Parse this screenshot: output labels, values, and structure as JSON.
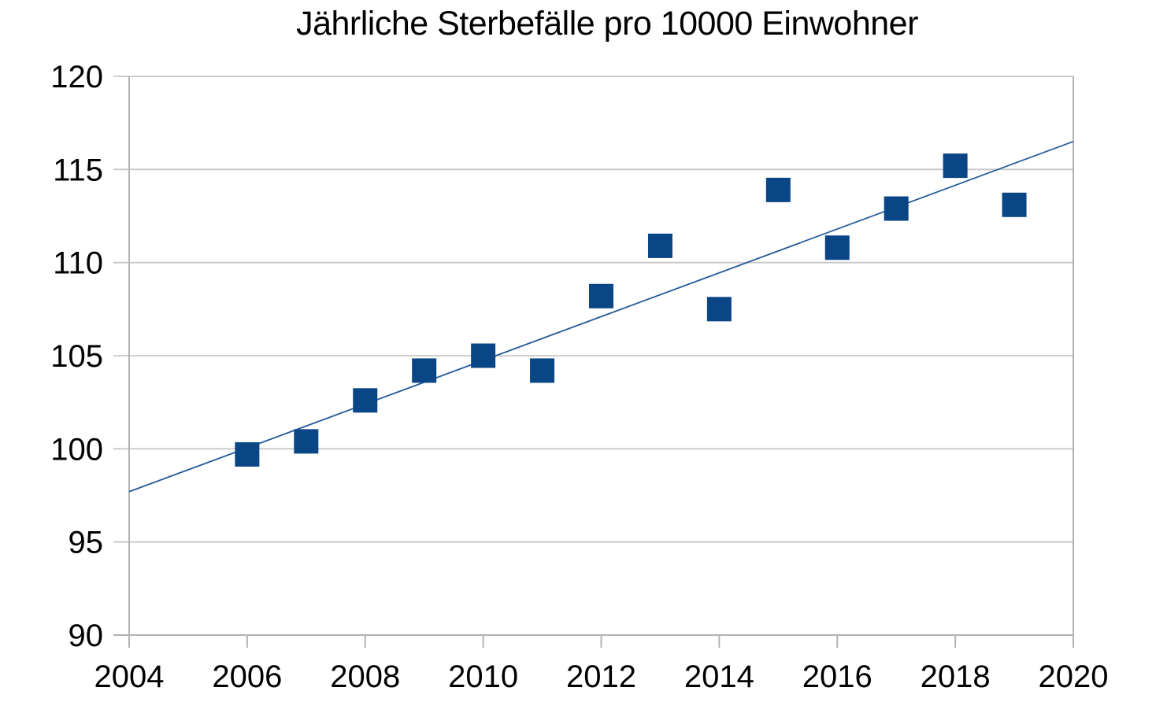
{
  "chart_data": {
    "type": "scatter",
    "title": "Jährliche Sterbefälle pro 10000 Einwohner",
    "xlabel": "",
    "ylabel": "",
    "xlim": [
      2004,
      2020
    ],
    "ylim": [
      90,
      120
    ],
    "x_ticks": [
      2004,
      2006,
      2008,
      2010,
      2012,
      2014,
      2016,
      2018,
      2020
    ],
    "y_ticks": [
      90,
      95,
      100,
      105,
      110,
      115,
      120
    ],
    "grid": "horizontal-only",
    "legend": "none",
    "series": [
      {
        "marker": "square",
        "x": [
          2006,
          2007,
          2008,
          2009,
          2010,
          2011,
          2012,
          2013,
          2014,
          2015,
          2016,
          2017,
          2018,
          2019
        ],
        "y": [
          99.7,
          100.4,
          102.6,
          104.2,
          105.0,
          104.2,
          108.2,
          110.9,
          107.5,
          113.9,
          110.8,
          112.9,
          115.2,
          113.1
        ]
      }
    ],
    "trendline": {
      "type": "linear",
      "x_start": 2004,
      "y_start": 97.7,
      "x_end": 2020,
      "y_end": 116.5
    },
    "colors": {
      "marker": "#0a4586",
      "trendline": "#265d9c",
      "gridline": "#c8c8c8",
      "axis": "#b3b3b3",
      "text": "#000000",
      "background": "#ffffff"
    }
  }
}
